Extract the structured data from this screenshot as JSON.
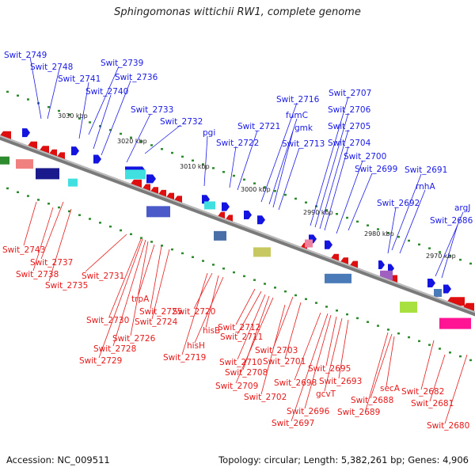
{
  "title": "Sphingomonas wittichii RW1, complete genome",
  "footer": {
    "accession": "Accession: NC_009511",
    "summary": "Topology: circular; Length: 5,382,261 bp; Genes: 4,906"
  },
  "colors": {
    "forward_label": "#1a1ae6",
    "reverse_label": "#e61a1a",
    "backbone": "#888888",
    "ruler_tick": "#2e8b2e"
  },
  "kbp_marks": [
    "3030 kbp",
    "3020 kbp",
    "3010 kbp",
    "3000 kbp",
    "2990 kbp",
    "2980 kbp",
    "2970 kbp"
  ],
  "forward_labels": [
    "Swit_2749",
    "Swit_2748",
    "Swit_2741",
    "Swit_2739",
    "Swit_2740",
    "Swit_2736",
    "Swit_2733",
    "Swit_2732",
    "pgi",
    "Swit_2722",
    "Swit_2721",
    "Swit_2716",
    "fumC",
    "gmk",
    "Swit_2713",
    "Swit_2707",
    "Swit_2706",
    "Swit_2705",
    "Swit_2704",
    "Swit_2700",
    "Swit_2699",
    "Swit_2691",
    "rnhA",
    "Swit_2692",
    "argJ",
    "Swit_2686"
  ],
  "reverse_labels": [
    "Swit_2743",
    "Swit_2737",
    "Swit_2738",
    "Swit_2735",
    "Swit_2731",
    "Swit_2730",
    "trpA",
    "Swit_2725",
    "Swit_2724",
    "Swit_2726",
    "Swit_2728",
    "Swit_2729",
    "Swit_2720",
    "hisB",
    "hisH",
    "Swit_2719",
    "Swit_2712",
    "Swit_2711",
    "Swit_2710",
    "Swit_2708",
    "Swit_2709",
    "Swit_2703",
    "Swit_2701",
    "Swit_2702",
    "Swit_2698",
    "Swit_2695",
    "Swit_2693",
    "gcvT",
    "Swit_2696",
    "Swit_2697",
    "Swit_2689",
    "Swit_2688",
    "secA",
    "Swit_2682",
    "Swit_2681",
    "Swit_2680"
  ]
}
